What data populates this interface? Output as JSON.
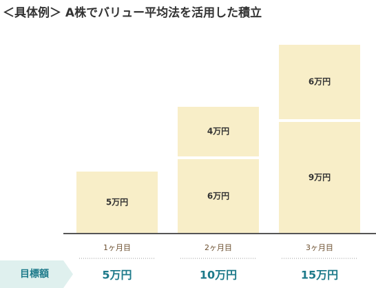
{
  "chart_data": {
    "type": "bar",
    "stacked": true,
    "title": "＜具体例＞ A株でバリュー平均法を活用した積立",
    "categories": [
      "1ヶ月目",
      "2ヶ月目",
      "3ヶ月目"
    ],
    "series": [
      {
        "color": "#f8eec8",
        "values": [
          5,
          6,
          9
        ],
        "value_labels": [
          "5万円",
          "6万円",
          "9万円"
        ]
      },
      {
        "color": "#f8eec8",
        "values": [
          null,
          4,
          6
        ],
        "value_labels": [
          null,
          "4万円",
          "6万円"
        ]
      }
    ],
    "target": {
      "label": "目標額",
      "values": [
        5,
        10,
        15
      ],
      "value_labels": [
        "5万円",
        "10万円",
        "15万円"
      ]
    }
  }
}
